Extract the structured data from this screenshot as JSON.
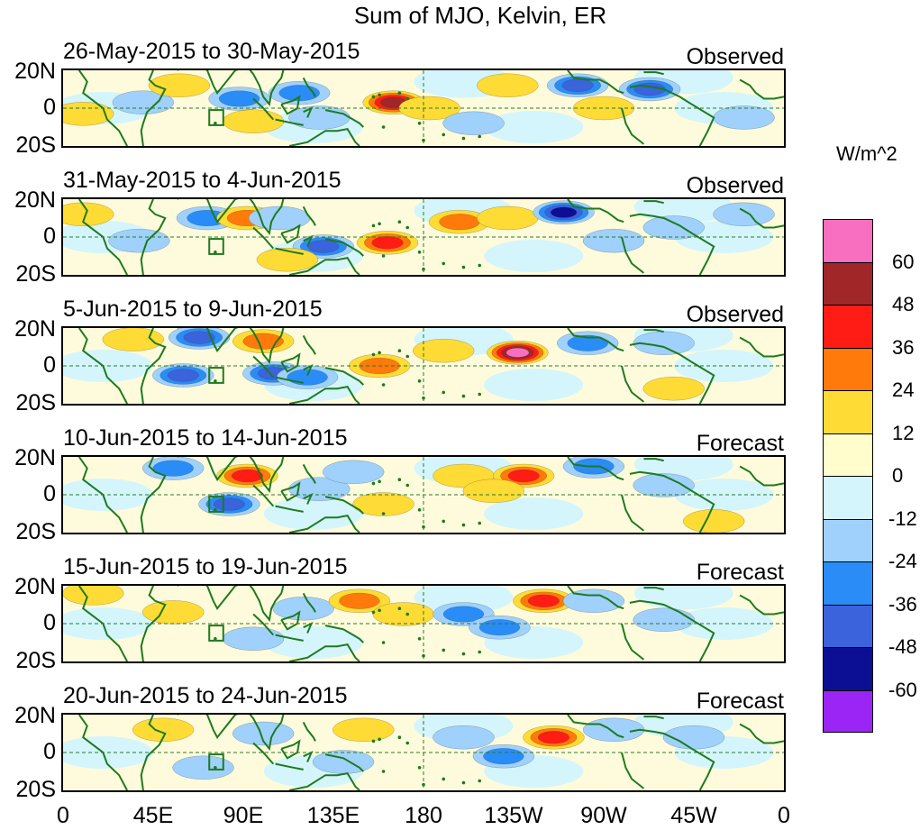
{
  "title": "Sum of MJO, Kelvin, ER",
  "lat_labels": [
    "20N",
    "0",
    "20S"
  ],
  "lon_labels": [
    "0",
    "45E",
    "90E",
    "135E",
    "180",
    "135W",
    "90W",
    "45W",
    "0"
  ],
  "colorbar": {
    "units": "W/m^2",
    "levels": [
      "60",
      "48",
      "36",
      "24",
      "12",
      "0",
      "-12",
      "-24",
      "-36",
      "-48",
      "-60"
    ],
    "colors": [
      "#f76fbe",
      "#a02628",
      "#ff1c14",
      "#ff7a0a",
      "#fedb35",
      "#fffdcc",
      "#d4f5fc",
      "#9fd1fc",
      "#2a8cf6",
      "#3a63dc",
      "#0c0f94",
      "#9b25f4"
    ]
  },
  "panels": [
    {
      "date": "26-May-2015 to 30-May-2015",
      "type": "Observed"
    },
    {
      "date": "31-May-2015 to 4-Jun-2015",
      "type": "Observed"
    },
    {
      "date": "5-Jun-2015 to 9-Jun-2015",
      "type": "Observed"
    },
    {
      "date": "10-Jun-2015 to 14-Jun-2015",
      "type": "Forecast"
    },
    {
      "date": "15-Jun-2015 to 19-Jun-2015",
      "type": "Forecast"
    },
    {
      "date": "20-Jun-2015 to 24-Jun-2015",
      "type": "Forecast"
    }
  ],
  "map_data": {
    "lon_range": [
      0,
      360
    ],
    "lat_range": [
      -20,
      20
    ],
    "reference_lines": [
      "equator",
      "dateline"
    ],
    "panel_anomalies": [
      [
        {
          "lon": 40,
          "lat": 3,
          "v": -12
        },
        {
          "lon": 58,
          "lat": 12,
          "v": 12
        },
        {
          "lon": 88,
          "lat": 5,
          "v": -24
        },
        {
          "lon": 95,
          "lat": -7,
          "v": 12
        },
        {
          "lon": 118,
          "lat": 8,
          "v": -24
        },
        {
          "lon": 128,
          "lat": -5,
          "v": -12
        },
        {
          "lon": 165,
          "lat": 3,
          "v": 48
        },
        {
          "lon": 183,
          "lat": 0,
          "v": 12
        },
        {
          "lon": 205,
          "lat": -8,
          "v": -12
        },
        {
          "lon": 222,
          "lat": 12,
          "v": 12
        },
        {
          "lon": 257,
          "lat": 12,
          "v": -36
        },
        {
          "lon": 293,
          "lat": 10,
          "v": -36
        },
        {
          "lon": 270,
          "lat": 0,
          "v": 12
        },
        {
          "lon": 340,
          "lat": -5,
          "v": -12
        },
        {
          "lon": 10,
          "lat": -3,
          "v": 12
        }
      ],
      [
        {
          "lon": 38,
          "lat": -2,
          "v": -12
        },
        {
          "lon": 72,
          "lat": 10,
          "v": -24
        },
        {
          "lon": 92,
          "lat": 10,
          "v": 24
        },
        {
          "lon": 108,
          "lat": 10,
          "v": -12
        },
        {
          "lon": 130,
          "lat": -5,
          "v": -36
        },
        {
          "lon": 162,
          "lat": -3,
          "v": 36
        },
        {
          "lon": 112,
          "lat": -12,
          "v": 12
        },
        {
          "lon": 198,
          "lat": 8,
          "v": 24
        },
        {
          "lon": 222,
          "lat": 10,
          "v": 12
        },
        {
          "lon": 250,
          "lat": 13,
          "v": -48
        },
        {
          "lon": 275,
          "lat": -2,
          "v": -12
        },
        {
          "lon": 305,
          "lat": 5,
          "v": -12
        },
        {
          "lon": 340,
          "lat": 12,
          "v": -12
        },
        {
          "lon": 10,
          "lat": 12,
          "v": 12
        }
      ],
      [
        {
          "lon": 60,
          "lat": -5,
          "v": -36
        },
        {
          "lon": 68,
          "lat": 15,
          "v": -36
        },
        {
          "lon": 100,
          "lat": 13,
          "v": 24
        },
        {
          "lon": 105,
          "lat": -4,
          "v": -36
        },
        {
          "lon": 122,
          "lat": -6,
          "v": -24
        },
        {
          "lon": 158,
          "lat": 0,
          "v": 24
        },
        {
          "lon": 190,
          "lat": 8,
          "v": 12
        },
        {
          "lon": 227,
          "lat": 7,
          "v": 60
        },
        {
          "lon": 262,
          "lat": 12,
          "v": -24
        },
        {
          "lon": 300,
          "lat": 12,
          "v": -12
        },
        {
          "lon": 305,
          "lat": -12,
          "v": 12
        },
        {
          "lon": 35,
          "lat": 14,
          "v": 12
        }
      ],
      [
        {
          "lon": 55,
          "lat": 14,
          "v": -24
        },
        {
          "lon": 92,
          "lat": 10,
          "v": 36
        },
        {
          "lon": 83,
          "lat": -5,
          "v": -36
        },
        {
          "lon": 128,
          "lat": 3,
          "v": -12
        },
        {
          "lon": 145,
          "lat": 12,
          "v": -12
        },
        {
          "lon": 200,
          "lat": 10,
          "v": 12
        },
        {
          "lon": 230,
          "lat": 10,
          "v": 36
        },
        {
          "lon": 215,
          "lat": 2,
          "v": 12
        },
        {
          "lon": 265,
          "lat": 15,
          "v": -24
        },
        {
          "lon": 300,
          "lat": 5,
          "v": -12
        },
        {
          "lon": 325,
          "lat": -14,
          "v": 12
        },
        {
          "lon": 160,
          "lat": -5,
          "v": 12
        }
      ],
      [
        {
          "lon": 55,
          "lat": 6,
          "v": 12
        },
        {
          "lon": 120,
          "lat": 8,
          "v": -12
        },
        {
          "lon": 148,
          "lat": 12,
          "v": 24
        },
        {
          "lon": 170,
          "lat": 5,
          "v": 12
        },
        {
          "lon": 200,
          "lat": 5,
          "v": -24
        },
        {
          "lon": 218,
          "lat": -2,
          "v": -24
        },
        {
          "lon": 240,
          "lat": 12,
          "v": 36
        },
        {
          "lon": 265,
          "lat": 12,
          "v": -12
        },
        {
          "lon": 95,
          "lat": -8,
          "v": -12
        },
        {
          "lon": 300,
          "lat": 2,
          "v": -12
        },
        {
          "lon": 15,
          "lat": 16,
          "v": 12
        }
      ],
      [
        {
          "lon": 50,
          "lat": 12,
          "v": 12
        },
        {
          "lon": 100,
          "lat": 10,
          "v": -12
        },
        {
          "lon": 150,
          "lat": 12,
          "v": 12
        },
        {
          "lon": 200,
          "lat": 8,
          "v": -12
        },
        {
          "lon": 220,
          "lat": -2,
          "v": -24
        },
        {
          "lon": 245,
          "lat": 8,
          "v": 36
        },
        {
          "lon": 275,
          "lat": 12,
          "v": -12
        },
        {
          "lon": 315,
          "lat": 8,
          "v": -12
        },
        {
          "lon": 70,
          "lat": -8,
          "v": -12
        },
        {
          "lon": 140,
          "lat": -5,
          "v": -12
        }
      ]
    ]
  }
}
